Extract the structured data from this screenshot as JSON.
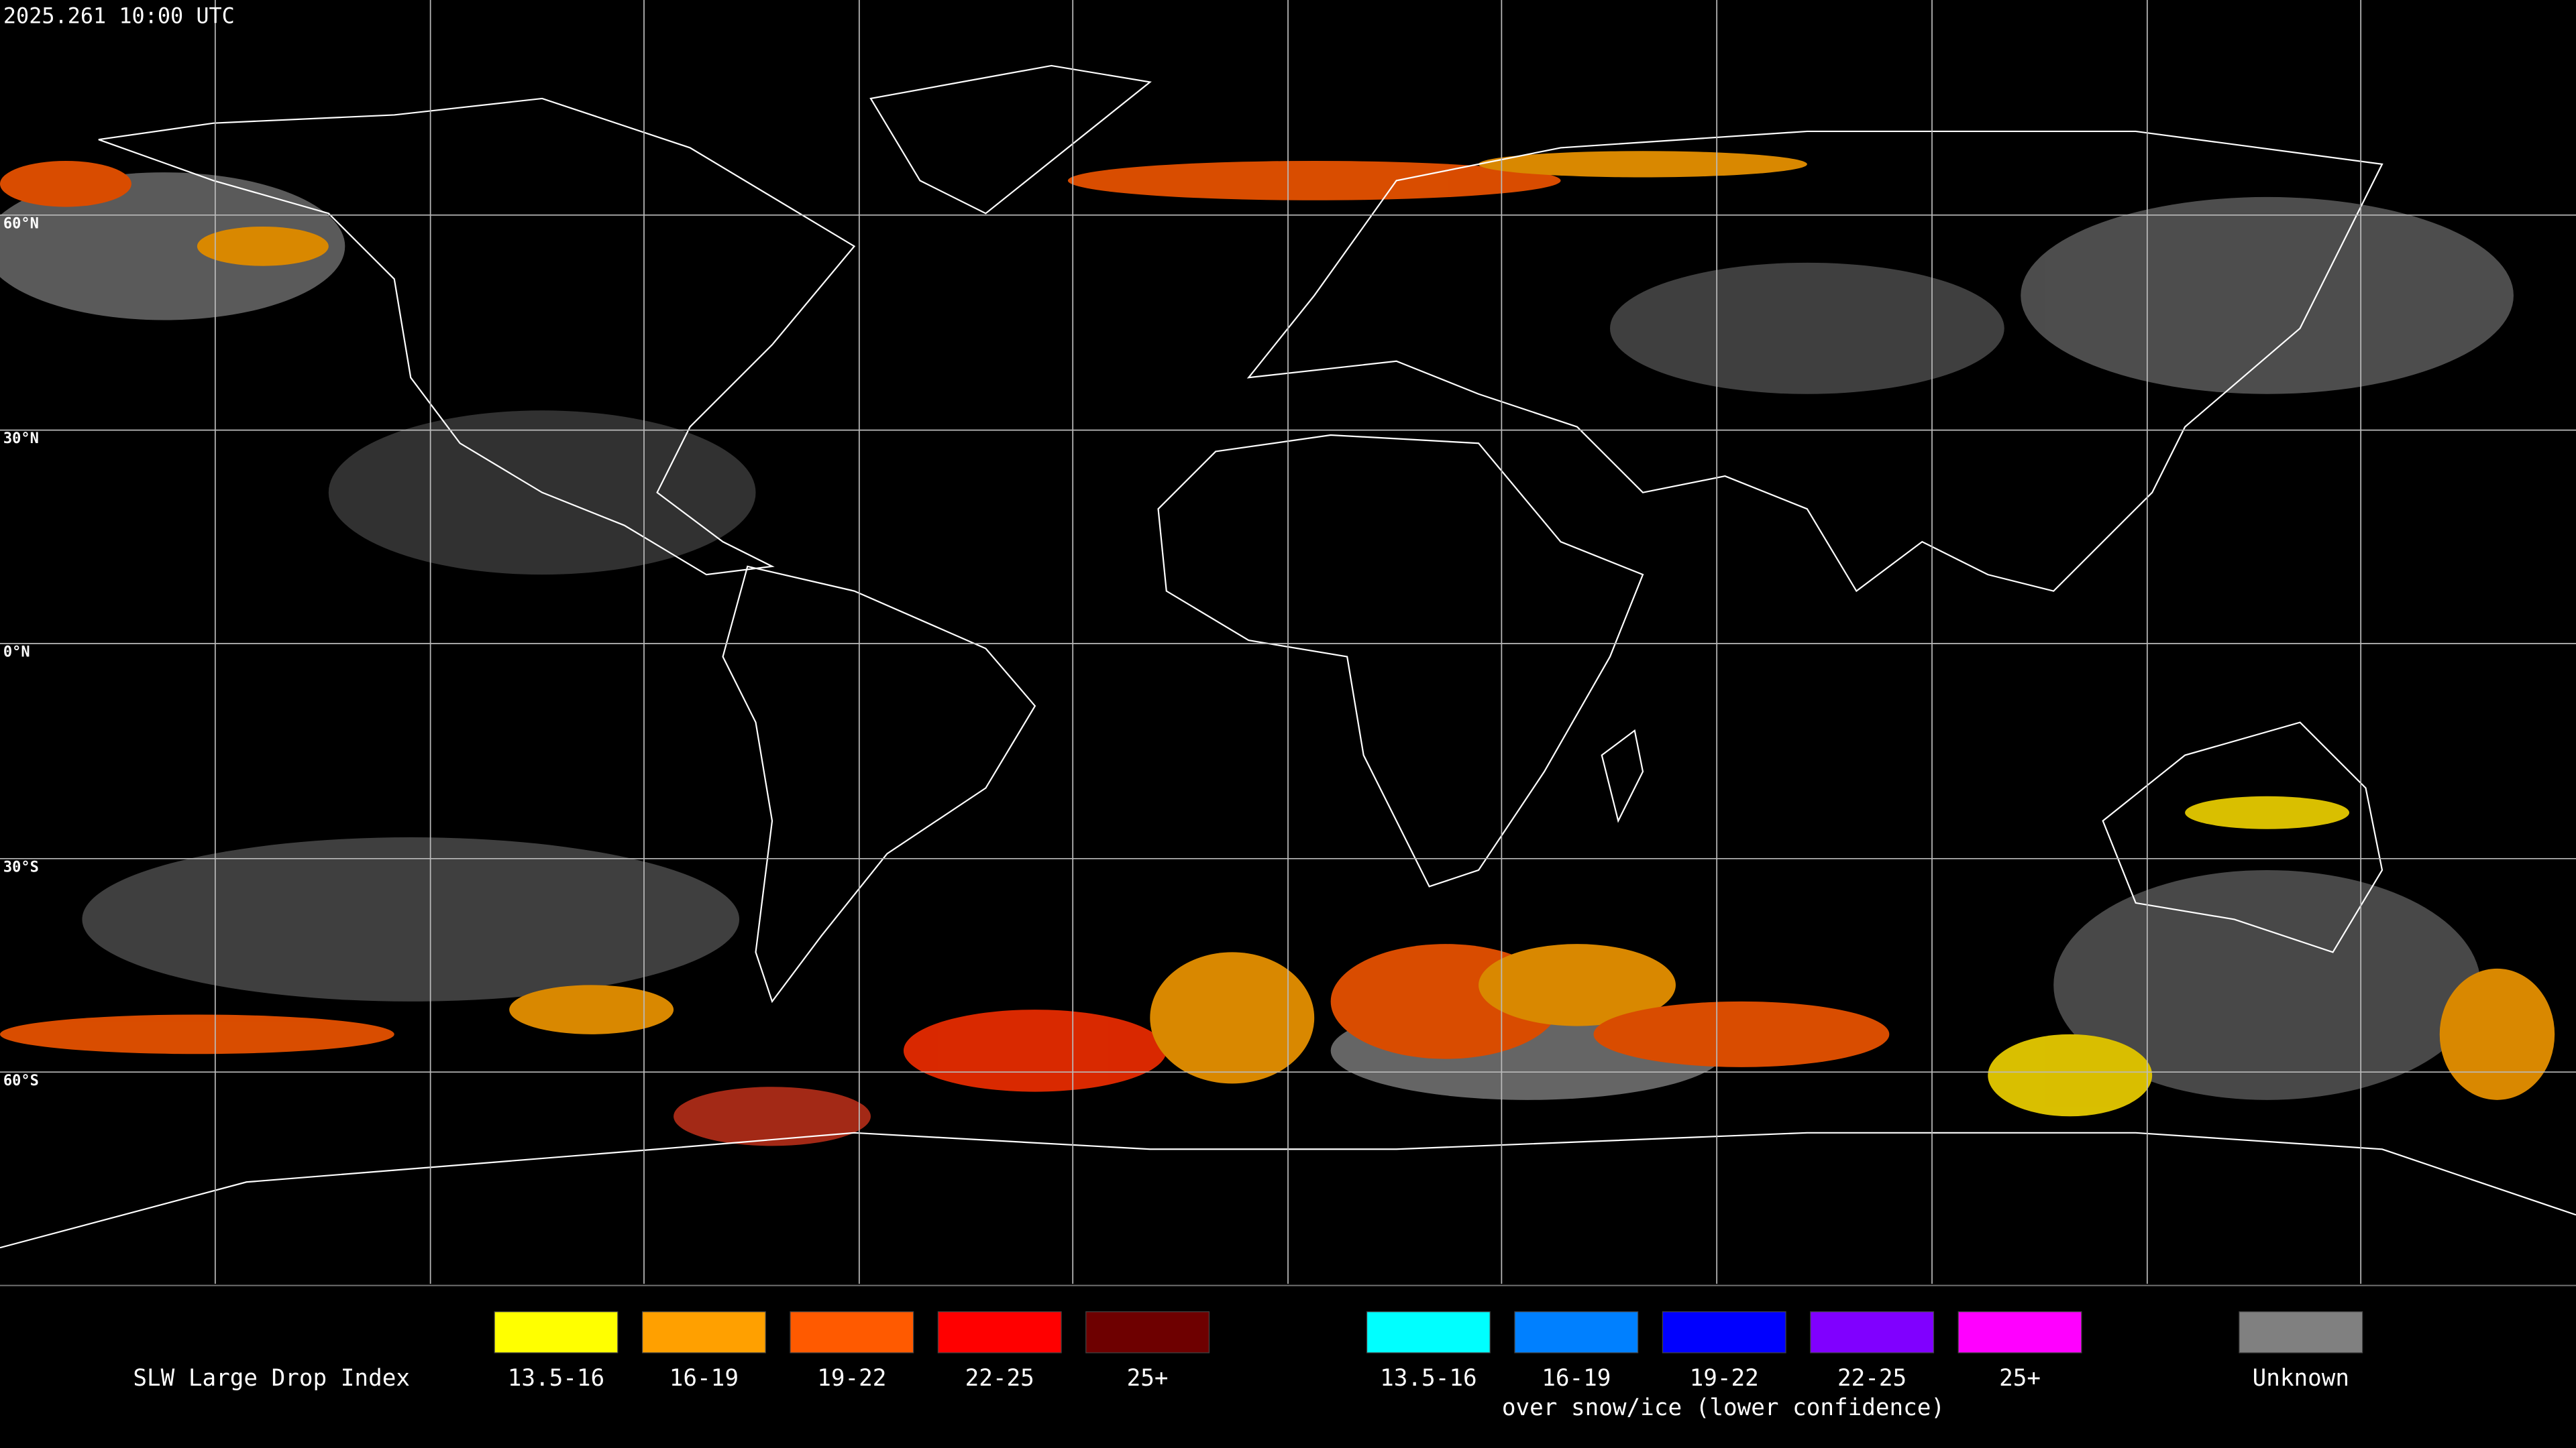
{
  "header": {
    "title": "2025.261 10:00 UTC"
  },
  "map": {
    "latitude_labels": [
      "60°N",
      "30°N",
      "0°N",
      "30°S",
      "60°S"
    ]
  },
  "legend": {
    "title": "SLW Large Drop Index",
    "items": [
      {
        "label": "13.5-16",
        "color": "#ffff00"
      },
      {
        "label": "16-19",
        "color": "#ffa000"
      },
      {
        "label": "19-22",
        "color": "#ff5a00"
      },
      {
        "label": "22-25",
        "color": "#ff0000"
      },
      {
        "label": "25+",
        "color": "#6e0000"
      }
    ],
    "snow_items": [
      {
        "label": "13.5-16",
        "color": "#00ffff"
      },
      {
        "label": "16-19",
        "color": "#0080ff"
      },
      {
        "label": "19-22",
        "color": "#0000ff"
      },
      {
        "label": "22-25",
        "color": "#8000ff"
      },
      {
        "label": "25+",
        "color": "#ff00ff"
      }
    ],
    "snow_caption": "over snow/ice (lower confidence)",
    "unknown": {
      "label": "Unknown",
      "color": "#808080"
    }
  }
}
